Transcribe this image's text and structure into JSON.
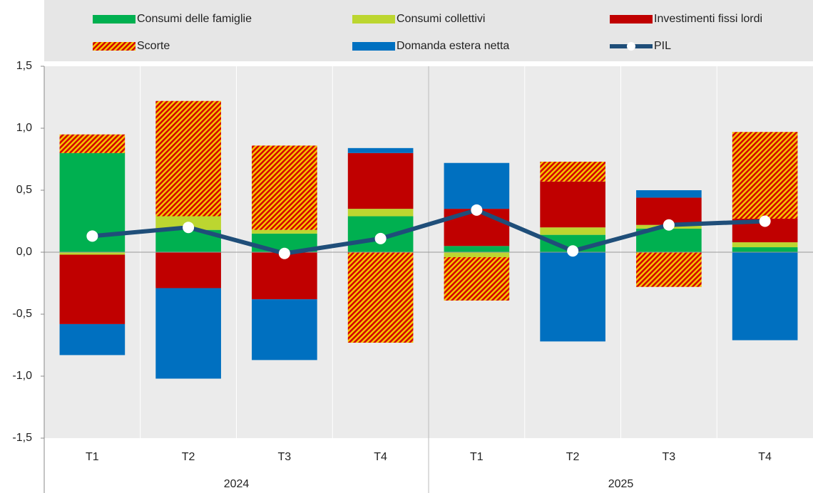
{
  "chart_data": {
    "type": "bar",
    "categories": [
      "T1",
      "T2",
      "T3",
      "T4",
      "T1",
      "T2",
      "T3",
      "T4"
    ],
    "groups": [
      "2024",
      "2025"
    ],
    "series": [
      {
        "name": "Consumi delle famiglie",
        "color": "#00b050",
        "values": [
          0.8,
          0.18,
          0.15,
          0.29,
          0.05,
          0.14,
          0.19,
          0.04
        ]
      },
      {
        "name": "Consumi collettivi",
        "color": "#bcd630",
        "values": [
          -0.02,
          0.11,
          0.03,
          0.06,
          -0.04,
          0.06,
          0.03,
          0.04
        ]
      },
      {
        "name": "Investimenti fissi lordi",
        "color": "#c00000",
        "values": [
          -0.56,
          -0.29,
          -0.38,
          0.45,
          0.3,
          0.37,
          0.22,
          0.19
        ]
      },
      {
        "name": "Scorte",
        "color": "#d40000",
        "hatch_color": "#f5c400",
        "values": [
          0.15,
          0.93,
          0.68,
          -0.73,
          -0.35,
          0.16,
          -0.28,
          0.7
        ]
      },
      {
        "name": "Domanda estera netta",
        "color": "#0070c0",
        "values": [
          -0.25,
          -0.73,
          -0.49,
          0.04,
          0.37,
          -0.72,
          0.06,
          -0.71
        ]
      },
      {
        "name": "PIL",
        "type": "line",
        "color": "#1f4e79",
        "marker_color": "#ffffff",
        "values": [
          0.13,
          0.2,
          -0.01,
          0.11,
          0.34,
          0.01,
          0.22,
          0.25
        ]
      }
    ],
    "ylim": [
      -1.5,
      1.5
    ],
    "yticks": [
      {
        "value": -1.5,
        "label": "-1,5"
      },
      {
        "value": -1.0,
        "label": "-1,0"
      },
      {
        "value": -0.5,
        "label": "-0,5"
      },
      {
        "value": 0,
        "label": "0,0"
      },
      {
        "value": 0.5,
        "label": "0,5"
      },
      {
        "value": 1.0,
        "label": "1,0"
      },
      {
        "value": 1.5,
        "label": "1,5"
      }
    ],
    "legend": "top"
  }
}
